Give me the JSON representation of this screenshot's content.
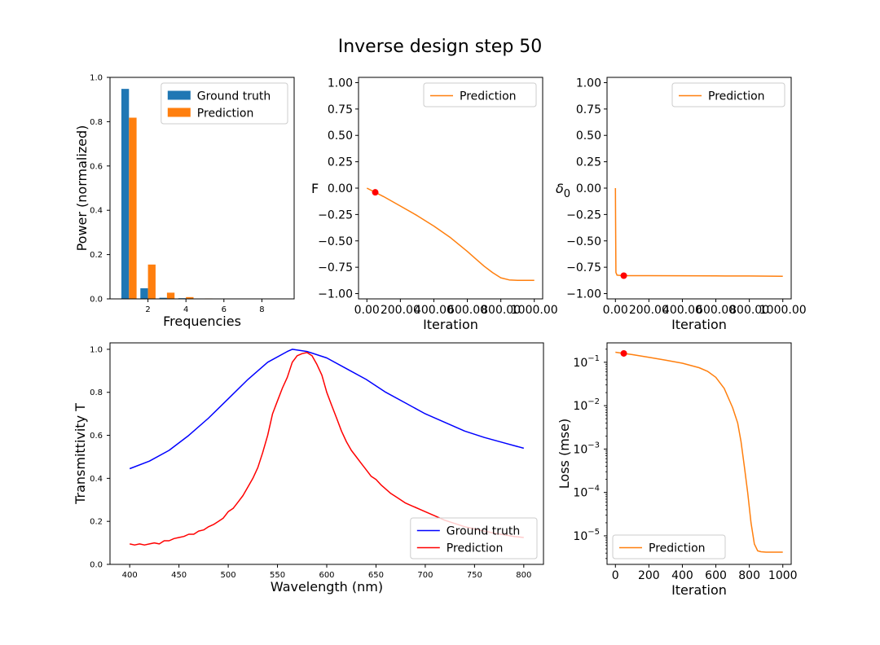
{
  "figure": {
    "title": "Inverse design step 50",
    "colors": {
      "ground_truth_bar": "#1f77b4",
      "prediction": "#ff7f0e",
      "ground_truth_line": "#0000ff",
      "prediction_line": "#ff0000",
      "marker": "#ff0000"
    }
  },
  "chart_data": [
    {
      "id": "freq",
      "type": "bar",
      "xlabel": "Frequencies",
      "ylabel": "Power (normalized)",
      "xlim": [
        0,
        9.7
      ],
      "ylim": [
        0,
        1.0
      ],
      "xticks": [
        2,
        4,
        6,
        8
      ],
      "yticks": [
        0.0,
        0.2,
        0.4,
        0.6,
        0.8,
        1.0
      ],
      "x": [
        1,
        2,
        3,
        4,
        5,
        6,
        7,
        8,
        9
      ],
      "legend": "upper right",
      "series": [
        {
          "name": "Ground truth",
          "values": [
            0.948,
            0.048,
            0.005,
            0.003,
            0.001,
            0.0,
            0.0,
            0.0,
            0.0
          ]
        },
        {
          "name": "Prediction",
          "values": [
            0.818,
            0.155,
            0.028,
            0.008,
            0.002,
            0.001,
            0.0,
            0.0,
            0.0
          ]
        }
      ]
    },
    {
      "id": "F",
      "type": "line",
      "xlabel": "Iteration",
      "ylabel": "F",
      "xlim": [
        -50,
        1050
      ],
      "ylim": [
        -1.05,
        1.05
      ],
      "xticks": [
        0,
        200,
        400,
        600,
        800,
        1000
      ],
      "yticks": [
        -1.0,
        -0.75,
        -0.5,
        -0.25,
        0.0,
        0.25,
        0.5,
        0.75,
        1.0
      ],
      "legend": "upper right",
      "series": [
        {
          "name": "Prediction",
          "x": [
            0,
            50,
            100,
            200,
            300,
            400,
            500,
            600,
            650,
            700,
            750,
            800,
            850,
            900,
            1000
          ],
          "y": [
            0.0,
            -0.04,
            -0.08,
            -0.17,
            -0.26,
            -0.36,
            -0.47,
            -0.6,
            -0.67,
            -0.74,
            -0.8,
            -0.85,
            -0.87,
            -0.875,
            -0.875
          ]
        }
      ],
      "marker": {
        "x": 50,
        "y": -0.04
      }
    },
    {
      "id": "delta",
      "type": "line",
      "xlabel": "Iteration",
      "ylabel": "δ0",
      "ylabel_main": "δ",
      "ylabel_sub": "0",
      "xlim": [
        -50,
        1050
      ],
      "ylim": [
        -1.05,
        1.05
      ],
      "xticks": [
        0,
        200,
        400,
        600,
        800,
        1000
      ],
      "yticks": [
        -1.0,
        -0.75,
        -0.5,
        -0.25,
        0.0,
        0.25,
        0.5,
        0.75,
        1.0
      ],
      "legend": "upper right",
      "series": [
        {
          "name": "Prediction",
          "x": [
            0,
            1,
            3,
            10,
            50,
            200,
            400,
            600,
            800,
            1000
          ],
          "y": [
            0.0,
            -0.3,
            -0.8,
            -0.825,
            -0.83,
            -0.83,
            -0.831,
            -0.832,
            -0.833,
            -0.835
          ]
        }
      ],
      "marker": {
        "x": 50,
        "y": -0.83
      }
    },
    {
      "id": "transmittivity",
      "type": "line",
      "xlabel": "Wavelength (nm)",
      "ylabel": "Transmittivity T",
      "xlim": [
        380,
        820
      ],
      "ylim": [
        0.0,
        1.03
      ],
      "xticks": [
        400,
        450,
        500,
        550,
        600,
        650,
        700,
        750,
        800
      ],
      "yticks": [
        0.0,
        0.2,
        0.4,
        0.6,
        0.8,
        1.0
      ],
      "legend": "lower right",
      "series": [
        {
          "name": "Ground truth",
          "x": [
            400,
            420,
            440,
            460,
            480,
            500,
            520,
            540,
            560,
            565,
            580,
            600,
            620,
            640,
            660,
            680,
            700,
            720,
            740,
            760,
            780,
            800
          ],
          "y": [
            0.445,
            0.48,
            0.53,
            0.6,
            0.68,
            0.77,
            0.86,
            0.94,
            0.99,
            1.0,
            0.99,
            0.96,
            0.91,
            0.86,
            0.8,
            0.75,
            0.7,
            0.66,
            0.62,
            0.59,
            0.565,
            0.54
          ]
        },
        {
          "name": "Prediction",
          "x": [
            400,
            405,
            410,
            415,
            420,
            425,
            430,
            435,
            440,
            445,
            450,
            455,
            460,
            465,
            470,
            475,
            480,
            485,
            490,
            495,
            500,
            505,
            510,
            515,
            520,
            525,
            530,
            535,
            540,
            545,
            550,
            555,
            560,
            565,
            570,
            575,
            580,
            585,
            590,
            595,
            600,
            605,
            610,
            615,
            620,
            625,
            630,
            635,
            640,
            645,
            650,
            655,
            660,
            665,
            670,
            675,
            680,
            685,
            690,
            695,
            700,
            710,
            720,
            730,
            740,
            750,
            760,
            770,
            780,
            790,
            800
          ],
          "y": [
            0.095,
            0.09,
            0.095,
            0.09,
            0.095,
            0.1,
            0.095,
            0.11,
            0.11,
            0.12,
            0.125,
            0.13,
            0.14,
            0.14,
            0.155,
            0.16,
            0.175,
            0.185,
            0.2,
            0.215,
            0.245,
            0.26,
            0.29,
            0.32,
            0.36,
            0.4,
            0.45,
            0.52,
            0.6,
            0.7,
            0.76,
            0.82,
            0.87,
            0.94,
            0.97,
            0.98,
            0.985,
            0.97,
            0.93,
            0.88,
            0.8,
            0.74,
            0.68,
            0.62,
            0.57,
            0.53,
            0.5,
            0.47,
            0.44,
            0.41,
            0.395,
            0.37,
            0.35,
            0.33,
            0.315,
            0.3,
            0.285,
            0.275,
            0.265,
            0.255,
            0.245,
            0.225,
            0.205,
            0.19,
            0.175,
            0.165,
            0.155,
            0.145,
            0.138,
            0.13,
            0.125
          ]
        }
      ]
    },
    {
      "id": "loss",
      "type": "line",
      "xlabel": "Iteration",
      "ylabel": "Loss (mse)",
      "yscale": "log",
      "xlim": [
        -50,
        1050
      ],
      "ylim": [
        2.2e-06,
        0.28
      ],
      "xticks": [
        0,
        200,
        400,
        600,
        800,
        1000
      ],
      "yticks_exp": [
        -5,
        -4,
        -3,
        -2,
        -1
      ],
      "legend": "lower left",
      "series": [
        {
          "name": "Prediction",
          "x": [
            0,
            50,
            100,
            200,
            300,
            400,
            500,
            550,
            600,
            650,
            700,
            730,
            750,
            770,
            790,
            810,
            830,
            850,
            870,
            900,
            950,
            1000
          ],
          "y": [
            0.17,
            0.16,
            0.15,
            0.13,
            0.112,
            0.095,
            0.075,
            0.062,
            0.045,
            0.025,
            0.009,
            0.004,
            0.0015,
            0.0004,
            0.0001,
            2e-05,
            6.5e-06,
            4.5e-06,
            4.3e-06,
            4.2e-06,
            4.2e-06,
            4.2e-06
          ]
        }
      ],
      "marker": {
        "x": 50,
        "y": 0.16
      }
    }
  ]
}
